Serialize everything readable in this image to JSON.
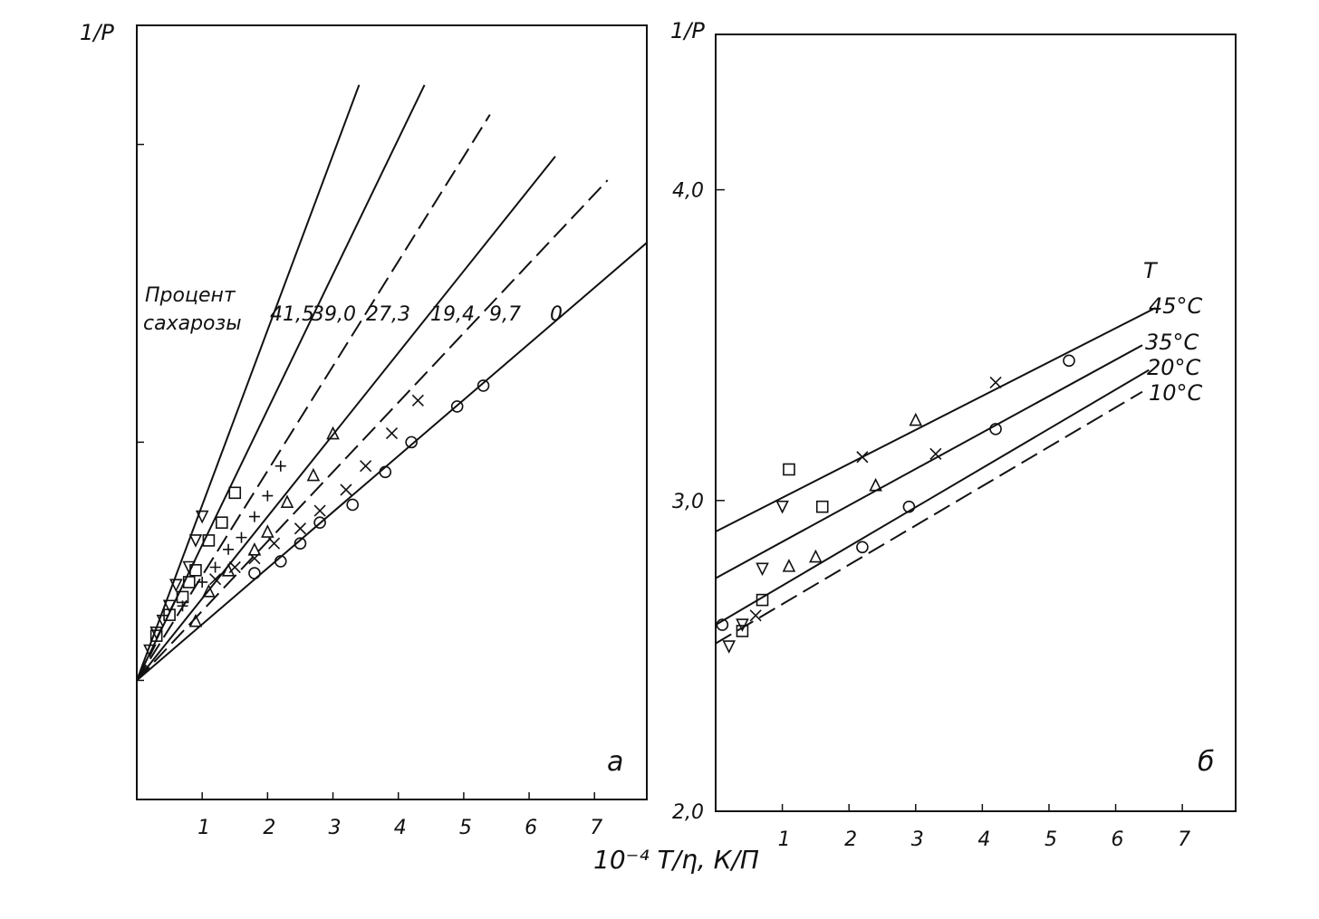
{
  "figure": {
    "shared_xlabel": "10⁻⁴ T/η, К/П"
  },
  "chart_data": [
    {
      "type": "line",
      "panel_label": "а",
      "title": "",
      "ylabel": "1/P",
      "xlabel": "10⁻⁴ T/η, К/П",
      "xlim": [
        0,
        7.8
      ],
      "ylim": [
        2.0,
        4.6
      ],
      "xticks": [
        "1",
        "2",
        "3",
        "4",
        "5",
        "6",
        "7"
      ],
      "yticks": [],
      "grid": false,
      "legend": {
        "title_lines": [
          "Процент",
          "сахарозы"
        ],
        "placement": "inline-center"
      },
      "series": [
        {
          "name": "41,5",
          "marker": "triangle-down",
          "dashed": false,
          "line": [
            [
              0,
              2.4
            ],
            [
              3.4,
              4.4
            ]
          ],
          "points": [
            [
              0.2,
              2.5
            ],
            [
              0.3,
              2.56
            ],
            [
              0.4,
              2.6
            ],
            [
              0.5,
              2.65
            ],
            [
              0.6,
              2.72
            ],
            [
              0.8,
              2.78
            ],
            [
              0.9,
              2.87
            ],
            [
              1.0,
              2.95
            ]
          ]
        },
        {
          "name": "39,0",
          "marker": "square",
          "dashed": false,
          "line": [
            [
              0,
              2.4
            ],
            [
              4.4,
              4.4
            ]
          ],
          "points": [
            [
              0.3,
              2.55
            ],
            [
              0.5,
              2.62
            ],
            [
              0.7,
              2.68
            ],
            [
              0.8,
              2.73
            ],
            [
              0.9,
              2.77
            ],
            [
              1.1,
              2.87
            ],
            [
              1.3,
              2.93
            ],
            [
              1.5,
              3.03
            ]
          ]
        },
        {
          "name": "27,3",
          "marker": "plus",
          "dashed": true,
          "line": [
            [
              0,
              2.4
            ],
            [
              5.4,
              4.3
            ]
          ],
          "points": [
            [
              0.7,
              2.65
            ],
            [
              1.0,
              2.73
            ],
            [
              1.2,
              2.78
            ],
            [
              1.4,
              2.84
            ],
            [
              1.6,
              2.88
            ],
            [
              1.8,
              2.95
            ],
            [
              2.0,
              3.02
            ],
            [
              2.2,
              3.12
            ]
          ]
        },
        {
          "name": "19,4",
          "marker": "triangle-up",
          "dashed": false,
          "line": [
            [
              0,
              2.4
            ],
            [
              6.4,
              4.16
            ]
          ],
          "points": [
            [
              0.9,
              2.6
            ],
            [
              1.1,
              2.7
            ],
            [
              1.4,
              2.77
            ],
            [
              1.8,
              2.84
            ],
            [
              2.0,
              2.9
            ],
            [
              2.3,
              3.0
            ],
            [
              2.7,
              3.09
            ],
            [
              3.0,
              3.23
            ]
          ]
        },
        {
          "name": "9,7",
          "marker": "cross",
          "dashed": true,
          "line": [
            [
              0,
              2.4
            ],
            [
              7.2,
              4.08
            ]
          ],
          "points": [
            [
              1.2,
              2.74
            ],
            [
              1.5,
              2.78
            ],
            [
              1.8,
              2.81
            ],
            [
              2.1,
              2.86
            ],
            [
              2.5,
              2.91
            ],
            [
              2.8,
              2.97
            ],
            [
              3.2,
              3.04
            ],
            [
              3.5,
              3.12
            ],
            [
              3.9,
              3.23
            ],
            [
              4.3,
              3.34
            ]
          ]
        },
        {
          "name": "0",
          "marker": "circle",
          "dashed": false,
          "line": [
            [
              0,
              2.4
            ],
            [
              7.8,
              3.87
            ]
          ],
          "points": [
            [
              1.8,
              2.76
            ],
            [
              2.2,
              2.8
            ],
            [
              2.5,
              2.86
            ],
            [
              2.8,
              2.93
            ],
            [
              3.3,
              2.99
            ],
            [
              3.8,
              3.1
            ],
            [
              4.2,
              3.2
            ],
            [
              4.9,
              3.32
            ],
            [
              5.3,
              3.39
            ]
          ]
        }
      ],
      "annotations": [
        "а"
      ]
    },
    {
      "type": "line",
      "panel_label": "б",
      "title": "",
      "ylabel": "1/P",
      "xlabel": "10⁻⁴ T/η, К/П",
      "xlim": [
        0,
        7.8
      ],
      "ylim": [
        2.0,
        4.5
      ],
      "xticks": [
        "1",
        "2",
        "3",
        "4",
        "5",
        "6",
        "7"
      ],
      "yticks": [
        "2,0",
        "3,0",
        "4,0"
      ],
      "grid": false,
      "legend": {
        "title": "T",
        "placement": "right"
      },
      "series": [
        {
          "name": "45°C",
          "marker": "triangle-up",
          "dashed": false,
          "line": [
            [
              0,
              2.9
            ],
            [
              6.6,
              3.62
            ]
          ],
          "points": [
            [
              1.1,
              2.79
            ],
            [
              1.5,
              2.82
            ],
            [
              2.4,
              3.05
            ],
            [
              3.0,
              3.26
            ]
          ]
        },
        {
          "name": "35°C",
          "marker": "cross",
          "dashed": false,
          "line": [
            [
              0,
              2.75
            ],
            [
              6.4,
              3.5
            ]
          ],
          "points": [
            [
              0.6,
              2.63
            ],
            [
              2.2,
              3.14
            ],
            [
              3.3,
              3.15
            ],
            [
              4.2,
              3.38
            ]
          ]
        },
        {
          "name": "20°C",
          "marker": "square",
          "dashed": false,
          "line": [
            [
              0,
              2.6
            ],
            [
              6.5,
              3.42
            ]
          ],
          "points": [
            [
              0.4,
              2.58
            ],
            [
              0.7,
              2.68
            ],
            [
              1.1,
              3.1
            ],
            [
              1.6,
              2.98
            ]
          ]
        },
        {
          "name": "10°C",
          "marker": "circle",
          "dashed": true,
          "line": [
            [
              0,
              2.54
            ],
            [
              6.4,
              3.35
            ]
          ],
          "points": [
            [
              0.1,
              2.6
            ],
            [
              2.2,
              2.85
            ],
            [
              2.9,
              2.98
            ],
            [
              4.2,
              3.23
            ],
            [
              5.3,
              3.45
            ]
          ]
        },
        {
          "name": "",
          "marker": "triangle-down",
          "dashed": false,
          "line": null,
          "points": [
            [
              0.2,
              2.53
            ],
            [
              0.4,
              2.6
            ],
            [
              0.7,
              2.78
            ],
            [
              1.0,
              2.98
            ]
          ]
        }
      ],
      "annotations": [
        "б"
      ]
    }
  ]
}
